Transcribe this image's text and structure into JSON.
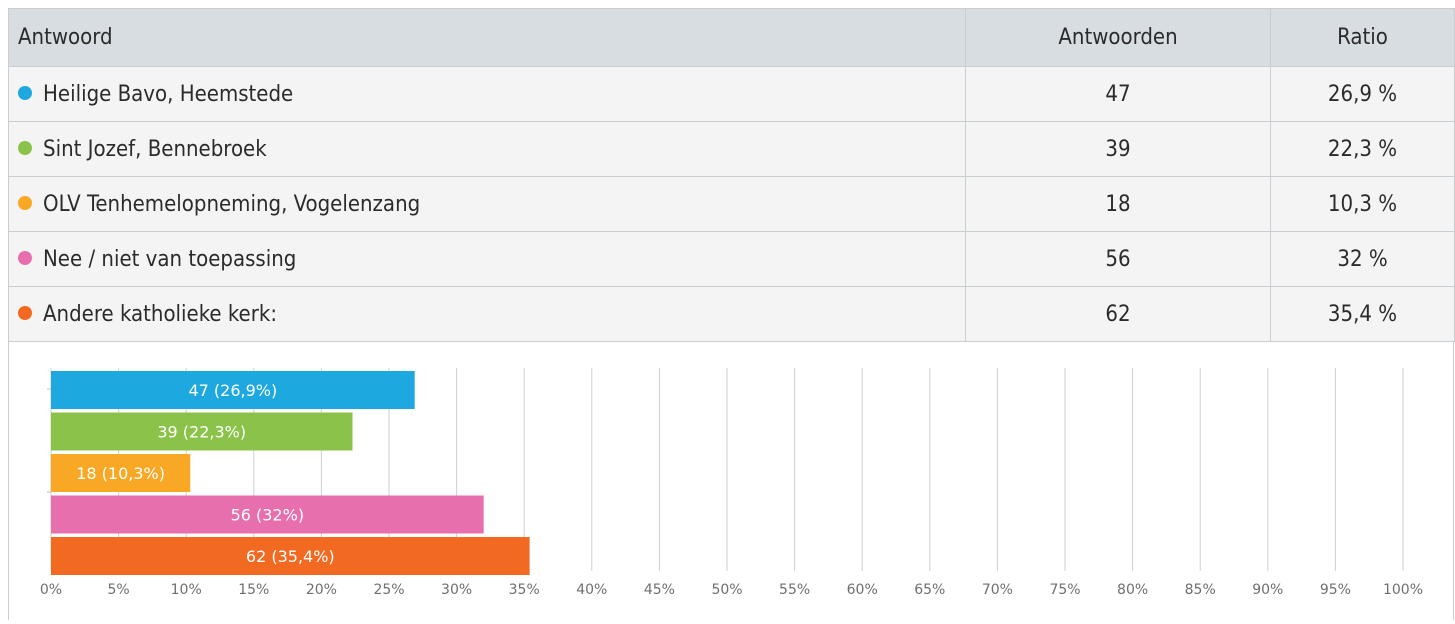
{
  "table": {
    "headers": {
      "answer": "Antwoord",
      "count": "Antwoorden",
      "ratio": "Ratio"
    },
    "rows": [
      {
        "label": "Heilige Bavo, Heemstede",
        "count": "47",
        "ratio": "26,9 %",
        "color": "#1ea8e0"
      },
      {
        "label": "Sint Jozef, Bennebroek",
        "count": "39",
        "ratio": "22,3 %",
        "color": "#8bc34a"
      },
      {
        "label": "OLV Tenhemelopneming, Vogelenzang",
        "count": "18",
        "ratio": "10,3 %",
        "color": "#f9a825"
      },
      {
        "label": "Nee / niet van toepassing",
        "count": "56",
        "ratio": "32 %",
        "color": "#e86fae"
      },
      {
        "label": "Andere katholieke kerk:",
        "count": "62",
        "ratio": "35,4 %",
        "color": "#f26a21"
      }
    ]
  },
  "chart_data": {
    "type": "bar",
    "orientation": "horizontal",
    "categories": [
      "Heilige Bavo, Heemstede",
      "Sint Jozef, Bennebroek",
      "OLV Tenhemelopneming, Vogelenzang",
      "Nee / niet van toepassing",
      "Andere katholieke kerk:"
    ],
    "values": [
      26.9,
      22.3,
      10.3,
      32,
      35.4
    ],
    "data_labels": [
      "47 (26,9%)",
      "39 (22,3%)",
      "18 (10,3%)",
      "56 (32%)",
      "62 (35,4%)"
    ],
    "colors": [
      "#1ea8e0",
      "#8bc34a",
      "#f9a825",
      "#e86fae",
      "#f26a21"
    ],
    "xlim": [
      0,
      100
    ],
    "xticks": [
      0,
      5,
      10,
      15,
      20,
      25,
      30,
      35,
      40,
      45,
      50,
      55,
      60,
      65,
      70,
      75,
      80,
      85,
      90,
      95,
      100
    ],
    "xtick_labels": [
      "0%",
      "5%",
      "10%",
      "15%",
      "20%",
      "25%",
      "30%",
      "35%",
      "40%",
      "45%",
      "50%",
      "55%",
      "60%",
      "65%",
      "70%",
      "75%",
      "80%",
      "85%",
      "90%",
      "95%",
      "100%"
    ],
    "grid": true,
    "legend": "none"
  }
}
